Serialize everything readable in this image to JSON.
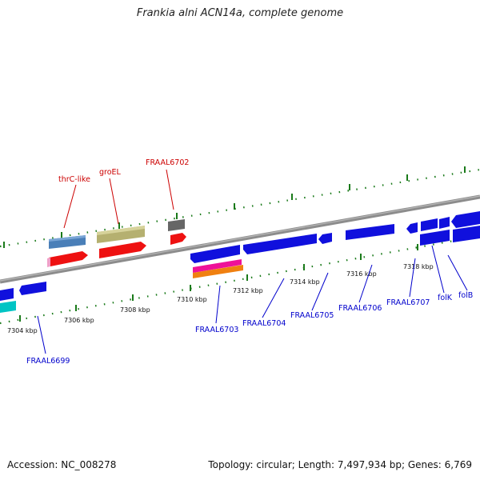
{
  "title": "Frankia alni ACN14a, complete genome",
  "footer": {
    "accession": "Accession: NC_008278",
    "summary": "Topology: circular; Length: 7,497,934 bp; Genes: 6,769"
  },
  "colors": {
    "backbone": "#8c8c8c",
    "ticks": "#1a7a1a",
    "top_label": "#cc0000",
    "bottom_label": "#0000cc"
  },
  "scale_labels": [
    "7304 kbp",
    "7306 kbp",
    "7308 kbp",
    "7310 kbp",
    "7312 kbp",
    "7314 kbp",
    "7316 kbp",
    "7318 kbp"
  ],
  "top_gene_labels": [
    "thrC-like",
    "groEL",
    "FRAAL6702"
  ],
  "bottom_gene_labels": [
    "FRAAL6699",
    "FRAAL6703",
    "FRAAL6704",
    "FRAAL6705",
    "FRAAL6706",
    "FRAAL6707",
    "folK",
    "folB"
  ]
}
